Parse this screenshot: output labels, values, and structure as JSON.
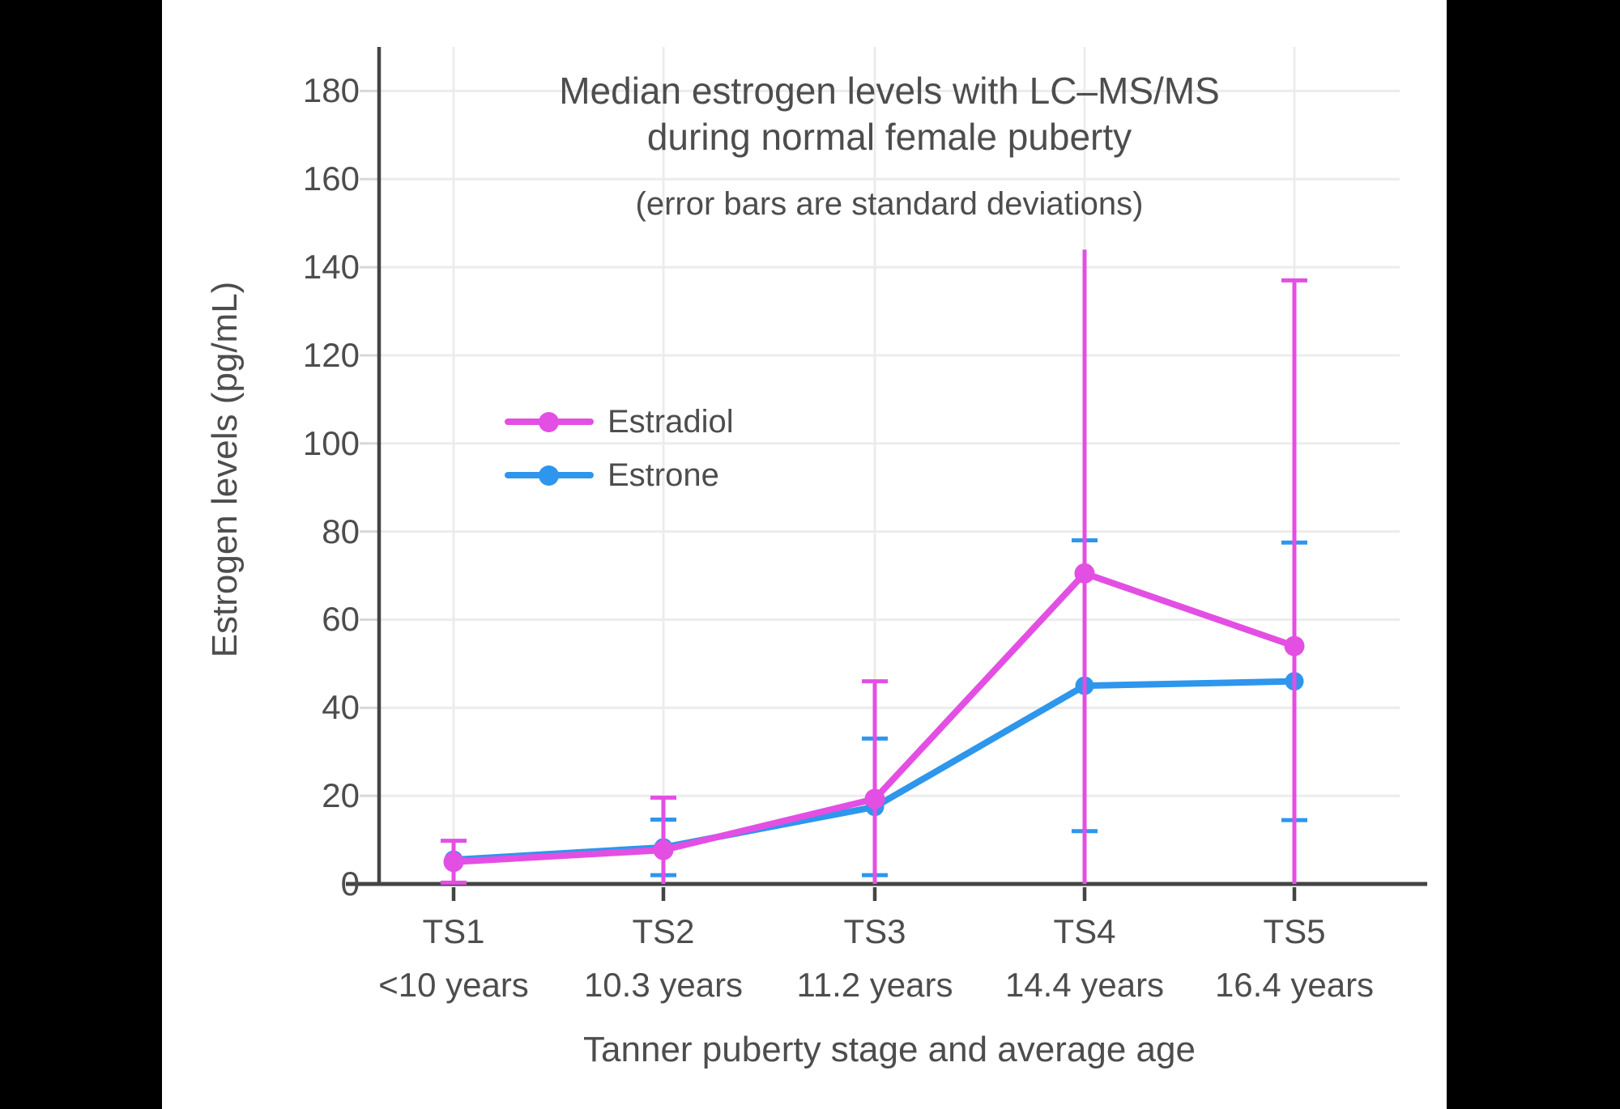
{
  "colors": {
    "background": "#ffffff",
    "frame": "#000000",
    "text": "#4d4d4d",
    "axis_line": "#444444",
    "gridline": "#ececec",
    "y_tick_dash": "#d8d8d8",
    "estradiol": "#e34fe3",
    "estrone": "#2e96ec"
  },
  "chart_data": {
    "type": "line",
    "title": "Median estrogen levels with LC–MS/MS during normal female puberty",
    "title_lines": [
      "Median estrogen levels with LC–MS/MS",
      "during normal female puberty"
    ],
    "subtitle": "(error bars are standard deviations)",
    "xlabel": "Tanner puberty stage and average age",
    "ylabel": "Estrogen levels (pg/mL)",
    "categories": [
      "TS1",
      "TS2",
      "TS3",
      "TS4",
      "TS5"
    ],
    "category_sublabels": [
      "<10 years",
      "10.3 years",
      "11.2 years",
      "14.4 years",
      "16.4 years"
    ],
    "yticks": [
      0,
      20,
      40,
      60,
      80,
      100,
      120,
      140,
      160,
      180
    ],
    "ylim": [
      0,
      190
    ],
    "grid": true,
    "legend_position": "inside-upper-left",
    "error_bar_note": "standard deviations, lower bars clipped at 0",
    "series": [
      {
        "name": "Estradiol",
        "color": "#e34fe3",
        "values": [
          5,
          7.7,
          19.3,
          70.5,
          54
        ],
        "error_upper": [
          9.8,
          19.6,
          46,
          144,
          137
        ],
        "upper_cap": [
          1,
          1,
          1,
          0,
          1
        ],
        "error_lower": [
          0.3,
          null,
          null,
          null,
          null
        ]
      },
      {
        "name": "Estrone",
        "color": "#2e96ec",
        "values": [
          5.5,
          8.3,
          17.5,
          45,
          46
        ],
        "error_upper": [
          null,
          14.6,
          33,
          78,
          77.5
        ],
        "upper_cap": [
          1,
          1,
          1,
          1,
          1
        ],
        "error_lower": [
          null,
          2,
          2,
          12,
          14.5
        ]
      }
    ]
  }
}
